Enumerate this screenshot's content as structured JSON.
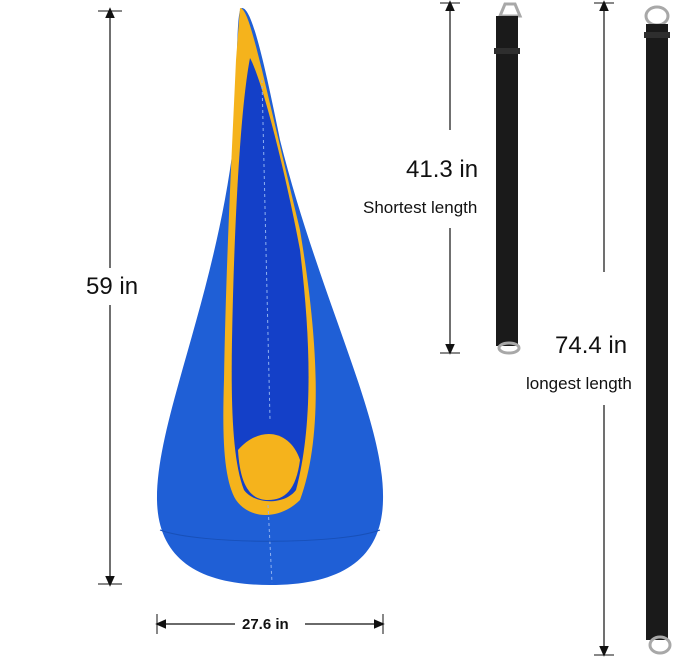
{
  "dimensions": {
    "height": "59 in",
    "width": "27.6 in",
    "short_strap": "41.3 in",
    "short_strap_caption": "Shortest length",
    "long_strap": "74.4 in",
    "long_strap_caption": "longest length"
  },
  "colors": {
    "pod_blue": "#1f5fd6",
    "pod_inner_blue": "#1440c8",
    "trim_yellow": "#f5b31c",
    "strap_black": "#1a1a1a",
    "ring_metal": "#a8a8a8"
  }
}
